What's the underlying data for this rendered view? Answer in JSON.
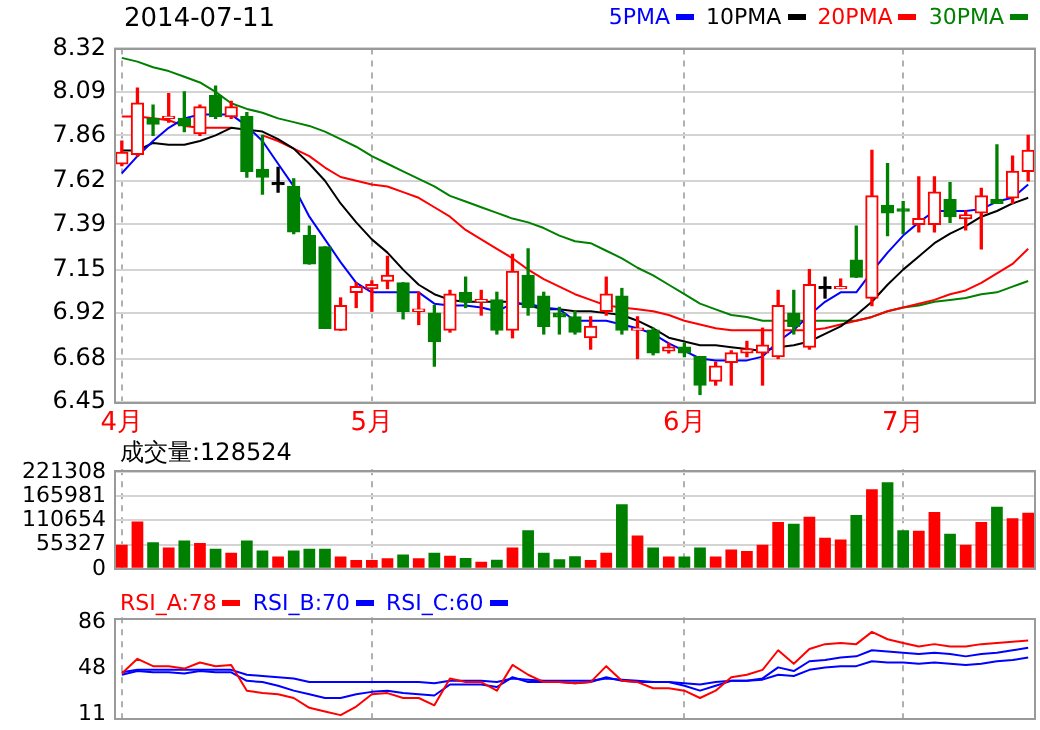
{
  "chart_data": [
    {
      "type": "candlestick",
      "title": "2014-07-11",
      "categories": [
        "4月",
        null,
        null,
        null,
        null,
        null,
        null,
        null,
        null,
        null,
        null,
        null,
        null,
        null,
        null,
        null,
        "5月",
        null,
        null,
        null,
        null,
        null,
        null,
        null,
        null,
        null,
        null,
        null,
        null,
        null,
        null,
        null,
        null,
        null,
        null,
        null,
        "6月",
        null,
        null,
        null,
        null,
        null,
        null,
        null,
        null,
        null,
        null,
        null,
        null,
        null,
        "7月",
        null,
        null,
        null,
        null,
        null,
        null,
        null,
        null
      ],
      "ohlc": [
        [
          7.71,
          7.83,
          7.7,
          7.77
        ],
        [
          7.76,
          8.11,
          7.75,
          8.03
        ],
        [
          7.95,
          8.02,
          7.86,
          7.92
        ],
        [
          7.95,
          8.08,
          7.93,
          7.96
        ],
        [
          7.95,
          8.09,
          7.88,
          7.91
        ],
        [
          7.87,
          8.02,
          7.86,
          8.01
        ],
        [
          8.07,
          8.12,
          7.95,
          7.96
        ],
        [
          7.96,
          8.04,
          7.95,
          8.01
        ],
        [
          7.96,
          7.98,
          7.64,
          7.67
        ],
        [
          7.68,
          7.86,
          7.55,
          7.64
        ],
        [
          7.6,
          7.69,
          7.56,
          7.6
        ],
        [
          7.59,
          7.63,
          7.34,
          7.35
        ],
        [
          7.33,
          7.38,
          7.18,
          7.18
        ],
        [
          7.27,
          7.27,
          6.84,
          6.84
        ],
        [
          6.83,
          7.0,
          6.83,
          6.96
        ],
        [
          7.03,
          7.08,
          6.95,
          7.06
        ],
        [
          7.05,
          7.09,
          6.93,
          7.07
        ],
        [
          7.09,
          7.22,
          7.05,
          7.12
        ],
        [
          7.08,
          7.08,
          6.89,
          6.93
        ],
        [
          6.93,
          7.03,
          6.86,
          6.94
        ],
        [
          6.92,
          6.96,
          6.64,
          6.77
        ],
        [
          6.83,
          7.04,
          6.82,
          7.02
        ],
        [
          7.03,
          7.11,
          6.95,
          6.98
        ],
        [
          6.98,
          7.04,
          6.91,
          6.99
        ],
        [
          6.99,
          7.03,
          6.81,
          6.83
        ],
        [
          6.83,
          7.23,
          6.79,
          7.14
        ],
        [
          7.12,
          7.26,
          6.91,
          6.95
        ],
        [
          7.01,
          7.03,
          6.81,
          6.85
        ],
        [
          6.92,
          6.95,
          6.81,
          6.9
        ],
        [
          6.9,
          6.93,
          6.81,
          6.82
        ],
        [
          6.79,
          6.9,
          6.73,
          6.85
        ],
        [
          6.93,
          7.11,
          6.91,
          7.02
        ],
        [
          7.01,
          7.05,
          6.81,
          6.83
        ],
        [
          6.83,
          6.9,
          6.68,
          6.84
        ],
        [
          6.83,
          6.84,
          6.7,
          6.71
        ],
        [
          6.72,
          6.76,
          6.71,
          6.74
        ],
        [
          6.74,
          6.76,
          6.69,
          6.71
        ],
        [
          6.69,
          6.69,
          6.49,
          6.54
        ],
        [
          6.56,
          6.66,
          6.54,
          6.64
        ],
        [
          6.66,
          6.72,
          6.54,
          6.71
        ],
        [
          6.71,
          6.77,
          6.69,
          6.73
        ],
        [
          6.71,
          6.84,
          6.54,
          6.75
        ],
        [
          6.69,
          7.04,
          6.68,
          6.96
        ],
        [
          6.92,
          7.04,
          6.81,
          6.85
        ],
        [
          6.74,
          7.15,
          6.73,
          7.07
        ],
        [
          7.05,
          7.11,
          7.0,
          7.05
        ],
        [
          7.05,
          7.1,
          7.05,
          7.06
        ],
        [
          7.2,
          7.38,
          7.11,
          7.11
        ],
        [
          7.0,
          7.78,
          6.96,
          7.54
        ],
        [
          7.49,
          7.71,
          7.33,
          7.45
        ],
        [
          7.47,
          7.51,
          7.34,
          7.46
        ],
        [
          7.39,
          7.64,
          7.35,
          7.42
        ],
        [
          7.39,
          7.64,
          7.35,
          7.56
        ],
        [
          7.52,
          7.61,
          7.4,
          7.43
        ],
        [
          7.42,
          7.46,
          7.36,
          7.44
        ],
        [
          7.45,
          7.58,
          7.26,
          7.54
        ],
        [
          7.52,
          7.81,
          7.5,
          7.5
        ],
        [
          7.53,
          7.75,
          7.5,
          7.67
        ],
        [
          7.67,
          7.86,
          7.62,
          7.78
        ]
      ],
      "colors": [
        "#ff0000",
        "#ff0000",
        "#008000",
        "#ff0000",
        "#008000",
        "#ff0000",
        "#008000",
        "#ff0000",
        "#008000",
        "#008000",
        "#000000",
        "#008000",
        "#008000",
        "#008000",
        "#ff0000",
        "#ff0000",
        "#ff0000",
        "#ff0000",
        "#008000",
        "#ff0000",
        "#008000",
        "#ff0000",
        "#008000",
        "#ff0000",
        "#008000",
        "#ff0000",
        "#008000",
        "#008000",
        "#008000",
        "#008000",
        "#ff0000",
        "#ff0000",
        "#008000",
        "#ff0000",
        "#008000",
        "#ff0000",
        "#008000",
        "#008000",
        "#ff0000",
        "#ff0000",
        "#ff0000",
        "#ff0000",
        "#ff0000",
        "#008000",
        "#ff0000",
        "#000000",
        "#ff0000",
        "#008000",
        "#ff0000",
        "#008000",
        "#008000",
        "#ff0000",
        "#ff0000",
        "#008000",
        "#ff0000",
        "#ff0000",
        "#008000",
        "#ff0000",
        "#ff0000"
      ],
      "series": [
        {
          "name": "5PMA",
          "type": "line",
          "color": "#0000ff",
          "values": [
            7.66,
            7.75,
            7.83,
            7.9,
            7.95,
            7.97,
            7.97,
            7.97,
            7.91,
            7.83,
            7.71,
            7.59,
            7.43,
            7.31,
            7.19,
            7.08,
            7.03,
            7.03,
            7.03,
            7.03,
            6.97,
            6.96,
            6.96,
            6.95,
            6.93,
            6.97,
            6.97,
            6.95,
            6.94,
            6.88,
            6.88,
            6.88,
            6.86,
            6.84,
            6.81,
            6.76,
            6.72,
            6.68,
            6.67,
            6.67,
            6.67,
            6.69,
            6.77,
            6.83,
            6.91,
            6.98,
            7.03,
            7.03,
            7.14,
            7.24,
            7.33,
            7.4,
            7.46,
            7.46,
            7.46,
            7.47,
            7.51,
            7.53,
            7.6
          ]
        },
        {
          "name": "10PMA",
          "type": "line",
          "color": "#000000",
          "values": [
            7.78,
            7.78,
            7.82,
            7.81,
            7.81,
            7.83,
            7.86,
            7.9,
            7.89,
            7.88,
            7.84,
            7.79,
            7.71,
            7.62,
            7.5,
            7.4,
            7.31,
            7.24,
            7.15,
            7.07,
            7.02,
            6.99,
            6.98,
            6.98,
            6.98,
            6.98,
            6.96,
            6.94,
            6.94,
            6.93,
            6.93,
            6.92,
            6.91,
            6.88,
            6.84,
            6.79,
            6.77,
            6.75,
            6.75,
            6.74,
            6.73,
            6.72,
            6.74,
            6.75,
            6.77,
            6.81,
            6.85,
            6.91,
            6.98,
            7.07,
            7.15,
            7.22,
            7.29,
            7.34,
            7.38,
            7.43,
            7.46,
            7.5,
            7.53
          ]
        },
        {
          "name": "20PMA",
          "type": "line",
          "color": "#ff0000",
          "values": [
            7.96,
            7.96,
            7.95,
            7.94,
            7.91,
            7.9,
            7.9,
            7.9,
            null,
            7.86,
            7.83,
            7.79,
            7.75,
            7.69,
            7.64,
            7.62,
            7.6,
            7.59,
            7.56,
            7.53,
            7.48,
            7.43,
            7.36,
            7.31,
            7.26,
            7.21,
            7.15,
            7.1,
            7.06,
            7.02,
            6.99,
            6.96,
            6.95,
            6.94,
            6.93,
            6.91,
            6.88,
            6.86,
            6.84,
            6.83,
            6.83,
            6.83,
            6.83,
            6.83,
            6.83,
            6.84,
            6.86,
            6.88,
            6.9,
            6.93,
            6.95,
            6.97,
            6.99,
            7.02,
            7.04,
            7.08,
            7.13,
            7.18,
            7.26
          ]
        },
        {
          "name": "30PMA",
          "type": "line",
          "color": "#008000",
          "values": [
            8.27,
            8.25,
            8.22,
            8.2,
            8.17,
            8.14,
            8.09,
            8.03,
            8.0,
            7.98,
            7.95,
            7.93,
            7.91,
            7.88,
            7.84,
            7.8,
            7.75,
            7.71,
            7.67,
            7.63,
            7.59,
            7.54,
            7.51,
            7.48,
            7.45,
            7.42,
            7.4,
            7.37,
            7.33,
            7.3,
            7.29,
            7.25,
            7.21,
            7.16,
            7.12,
            7.07,
            7.02,
            6.97,
            6.94,
            6.91,
            6.9,
            6.88,
            6.88,
            6.88,
            6.88,
            6.88,
            6.88,
            6.88,
            6.9,
            6.93,
            6.95,
            6.96,
            6.98,
            6.99,
            7.0,
            7.02,
            7.03,
            7.06,
            7.09
          ]
        }
      ],
      "ylim": [
        6.45,
        8.32
      ],
      "yticks": [
        6.45,
        6.68,
        6.92,
        7.15,
        7.39,
        7.62,
        7.86,
        8.09,
        8.32
      ],
      "grid": true,
      "legend": "top right"
    },
    {
      "type": "bar",
      "title": "成交量:128524",
      "categories": [
        null,
        null,
        null,
        null,
        null,
        null,
        null,
        null,
        null,
        null,
        null,
        null,
        null,
        null,
        null,
        null,
        null,
        null,
        null,
        null,
        null,
        null,
        null,
        null,
        null,
        null,
        null,
        null,
        null,
        null,
        null,
        null,
        null,
        null,
        null,
        null,
        null,
        null,
        null,
        null,
        null,
        null,
        null,
        null,
        null,
        null,
        null,
        null,
        null,
        null,
        null,
        null,
        null,
        null,
        null,
        null,
        null,
        null,
        null
      ],
      "values": [
        55000,
        108000,
        61000,
        49000,
        65000,
        59000,
        46000,
        37000,
        65000,
        42000,
        28000,
        42000,
        46000,
        46000,
        28000,
        20000,
        20000,
        24000,
        33000,
        24000,
        37000,
        30000,
        25000,
        16000,
        21000,
        49000,
        88000,
        37000,
        22000,
        29000,
        20000,
        37000,
        148000,
        76000,
        49000,
        28000,
        28000,
        49000,
        28000,
        44000,
        41000,
        55000,
        107000,
        103000,
        119000,
        71000,
        67000,
        123000,
        182000,
        198000,
        88000,
        87000,
        130000,
        80000,
        55000,
        107000,
        142000,
        116000,
        128524
      ],
      "colors": [
        "#ff0000",
        "#ff0000",
        "#008000",
        "#ff0000",
        "#008000",
        "#ff0000",
        "#008000",
        "#ff0000",
        "#008000",
        "#008000",
        "#ff0000",
        "#008000",
        "#008000",
        "#008000",
        "#ff0000",
        "#ff0000",
        "#ff0000",
        "#ff0000",
        "#008000",
        "#ff0000",
        "#008000",
        "#ff0000",
        "#008000",
        "#ff0000",
        "#008000",
        "#ff0000",
        "#008000",
        "#008000",
        "#008000",
        "#008000",
        "#ff0000",
        "#ff0000",
        "#008000",
        "#ff0000",
        "#008000",
        "#ff0000",
        "#008000",
        "#008000",
        "#ff0000",
        "#ff0000",
        "#ff0000",
        "#ff0000",
        "#ff0000",
        "#008000",
        "#ff0000",
        "#ff0000",
        "#ff0000",
        "#008000",
        "#ff0000",
        "#008000",
        "#008000",
        "#ff0000",
        "#ff0000",
        "#008000",
        "#ff0000",
        "#ff0000",
        "#008000",
        "#ff0000",
        "#ff0000"
      ],
      "ylim": [
        0,
        228000
      ],
      "yticks": [
        0,
        55327,
        110654,
        165981,
        221308
      ],
      "grid": true,
      "tick_labels": "y"
    },
    {
      "type": "line",
      "categories": [
        null,
        null,
        null,
        null,
        null,
        null,
        null,
        null,
        null,
        null,
        null,
        null,
        null,
        null,
        null,
        null,
        null,
        null,
        null,
        null,
        null,
        null,
        null,
        null,
        null,
        null,
        null,
        null,
        null,
        null,
        null,
        null,
        null,
        null,
        null,
        null,
        null,
        null,
        null,
        null,
        null,
        null,
        null,
        null,
        null,
        null,
        null,
        null,
        null,
        null,
        null,
        null,
        null,
        null,
        null,
        null,
        null,
        null,
        null
      ],
      "series": [
        {
          "name": "RSI_A:78",
          "color": "#ff0000",
          "values": [
            44,
            56,
            50,
            50,
            48,
            53,
            50,
            51,
            30,
            28,
            27,
            24,
            16,
            13,
            10,
            17,
            27,
            28,
            24,
            24,
            18,
            40,
            37,
            37,
            30,
            51,
            43,
            37,
            37,
            36,
            37,
            50,
            38,
            37,
            32,
            32,
            30,
            24,
            30,
            41,
            43,
            47,
            63,
            52,
            64,
            68,
            69,
            68,
            78,
            72,
            69,
            66,
            68,
            66,
            66,
            68,
            69,
            70,
            71
          ]
        },
        {
          "name": "RSI_B:70",
          "color": "#0000ff",
          "values": [
            43,
            46,
            45,
            45,
            44,
            46,
            45,
            45,
            38,
            37,
            34,
            30,
            27,
            24,
            24,
            27,
            29,
            30,
            28,
            27,
            26,
            35,
            35,
            35,
            33,
            41,
            37,
            37,
            37,
            36,
            37,
            41,
            38,
            37,
            37,
            37,
            34,
            30,
            34,
            38,
            38,
            40,
            49,
            46,
            54,
            55,
            57,
            58,
            63,
            62,
            61,
            60,
            61,
            60,
            58,
            60,
            61,
            63,
            65
          ]
        },
        {
          "name": "RSI_C:60",
          "color": "#0000ff",
          "values": [
            45,
            47,
            47,
            47,
            47,
            47,
            47,
            47,
            43,
            42,
            41,
            40,
            37,
            37,
            37,
            37,
            37,
            37,
            37,
            37,
            36,
            38,
            38,
            38,
            37,
            40,
            39,
            38,
            38,
            38,
            38,
            40,
            39,
            38,
            37,
            37,
            36,
            35,
            37,
            38,
            38,
            39,
            43,
            42,
            47,
            49,
            50,
            50,
            54,
            53,
            53,
            52,
            53,
            52,
            51,
            52,
            54,
            55,
            57
          ]
        }
      ],
      "ylim": [
        7,
        90
      ],
      "yticks": [
        11,
        48,
        86
      ],
      "grid": "x",
      "tick_labels": "y",
      "legend": "top left"
    }
  ]
}
